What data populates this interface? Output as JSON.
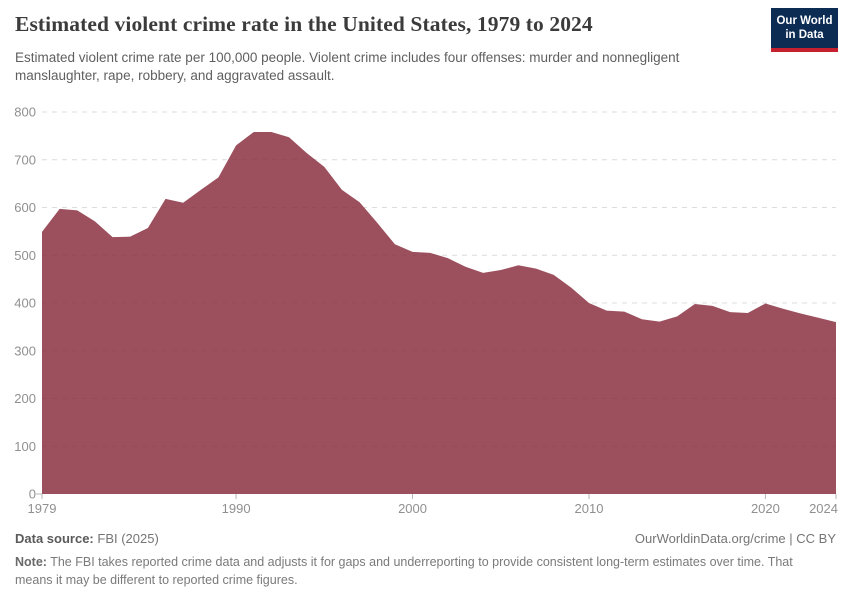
{
  "header": {
    "title": "Estimated violent crime rate in the United States, 1979 to 2024",
    "subtitle": "Estimated violent crime rate per 100,000 people. Violent crime includes four offenses: murder and nonnegligent manslaughter, rape, robbery, and aggravated assault."
  },
  "logo": {
    "line1": "Our World",
    "line2": "in Data",
    "bg_color": "#0d2c54",
    "stripe_color": "#c5202e"
  },
  "chart_data": {
    "type": "area",
    "title": "Estimated violent crime rate in the United States, 1979 to 2024",
    "series_name": "United States",
    "x": [
      1979,
      1980,
      1981,
      1982,
      1983,
      1984,
      1985,
      1986,
      1987,
      1988,
      1989,
      1990,
      1991,
      1992,
      1993,
      1994,
      1995,
      1996,
      1997,
      1998,
      1999,
      2000,
      2001,
      2002,
      2003,
      2004,
      2005,
      2006,
      2007,
      2008,
      2009,
      2010,
      2011,
      2012,
      2013,
      2014,
      2015,
      2016,
      2017,
      2018,
      2019,
      2020,
      2021,
      2022,
      2023,
      2024
    ],
    "values": [
      549,
      597,
      594,
      571,
      538,
      539,
      557,
      618,
      610,
      637,
      663,
      730,
      758,
      758,
      747,
      714,
      685,
      637,
      611,
      568,
      523,
      507,
      505,
      494,
      476,
      463,
      469,
      479,
      472,
      459,
      432,
      400,
      384,
      382,
      366,
      361,
      372,
      398,
      394,
      381,
      379,
      399,
      388,
      378,
      369,
      360
    ],
    "xlabel": "",
    "ylabel": "",
    "ylim": [
      0,
      800
    ],
    "yticks": [
      0,
      100,
      200,
      300,
      400,
      500,
      600,
      700,
      800
    ],
    "xticks": [
      1979,
      1990,
      2000,
      2010,
      2020,
      2024
    ],
    "grid": "horizontal-dashed",
    "legend_position": "none",
    "area_color": "#8b3141",
    "area_opacity": 0.85,
    "gridline_color": "#dcdcdc",
    "tick_label_color": "#909090",
    "tick_mark_color": "#b5b5b5"
  },
  "footer": {
    "datasource_label": "Data source:",
    "datasource_value": "FBI (2025)",
    "attribution": "OurWorldinData.org/crime | CC BY",
    "note_label": "Note:",
    "note_text": "The FBI takes reported crime data and adjusts it for gaps and underreporting to provide consistent long-term estimates over time. That means it may be different to reported crime figures."
  }
}
